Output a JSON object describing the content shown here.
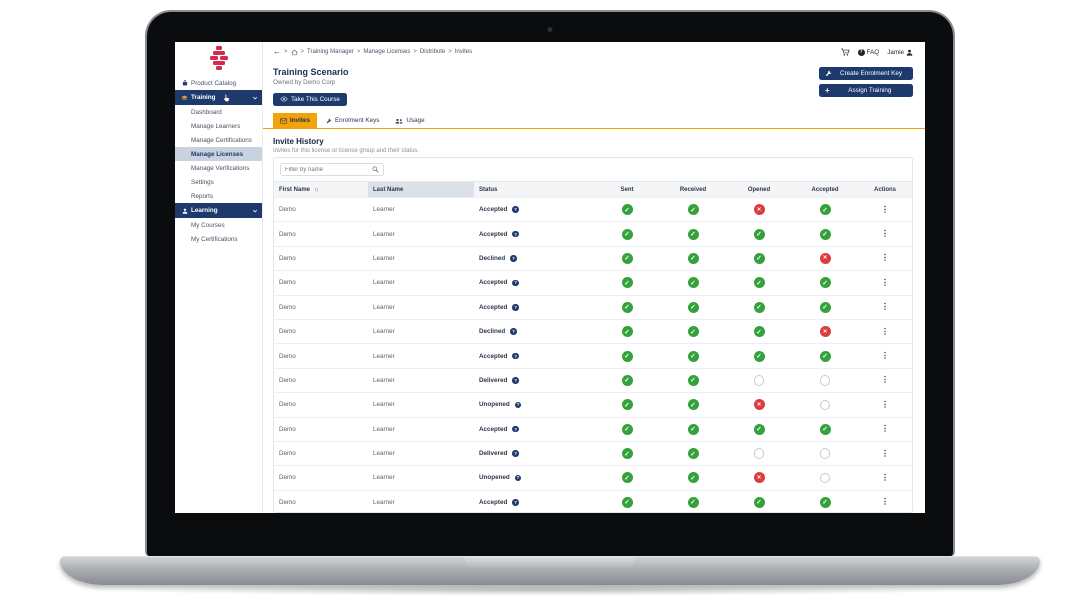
{
  "colors": {
    "navy": "#1e3a6d",
    "accent_orange": "#f0a30a",
    "success_green": "#33a13c",
    "danger_red": "#dd3b3b",
    "logo_red": "#d5294d",
    "selected_item_bg": "#c9d3df",
    "sorted_header_bg": "#dce1e7"
  },
  "sidebar": {
    "logo": "brand-logo",
    "items": [
      {
        "label": "Product Catalog",
        "type": "top",
        "icon": "bag"
      },
      {
        "label": "Training",
        "type": "section",
        "icon": "grad-cap",
        "chevron": true,
        "cursor": true
      },
      {
        "label": "Dashboard",
        "type": "sub"
      },
      {
        "label": "Manage Learners",
        "type": "sub"
      },
      {
        "label": "Manage Certifications",
        "type": "sub"
      },
      {
        "label": "Manage Licenses",
        "type": "sub",
        "selected": true
      },
      {
        "label": "Manage Verifications",
        "type": "sub"
      },
      {
        "label": "Settings",
        "type": "sub"
      },
      {
        "label": "Reports",
        "type": "sub"
      },
      {
        "label": "Learning",
        "type": "section",
        "icon": "person",
        "chevron": true
      },
      {
        "label": "My Courses",
        "type": "sub"
      },
      {
        "label": "My Certifications",
        "type": "sub"
      }
    ]
  },
  "topbar": {
    "breadcrumb": [
      "Training Manager",
      "Manage Licenses",
      "Distribute",
      "Invites"
    ],
    "icons": [
      "back-arrow-icon",
      "home-icon",
      "cart-icon",
      "faq-question-icon",
      "user-icon"
    ],
    "faq_label": "FAQ",
    "user_name": "Jamie"
  },
  "page": {
    "title": "Training Scenario",
    "subtitle": "Owned by Demo Corp",
    "take_course_label": "Take This Course",
    "create_key_label": "Create Enrolment Key",
    "assign_training_label": "Assign Training"
  },
  "tabs": [
    {
      "label": "Invites",
      "icon": "envelope",
      "active": true
    },
    {
      "label": "Enrolment Keys",
      "icon": "wrench",
      "active": false
    },
    {
      "label": "Usage",
      "icon": "people",
      "active": false
    }
  ],
  "invite_history": {
    "heading": "Invite History",
    "description": "Invites for this license or license group and their status.",
    "filter_placeholder": "Filter by name",
    "columns": [
      "First Name",
      "Last Name",
      "Status",
      "Sent",
      "Received",
      "Opened",
      "Accepted",
      "Actions"
    ],
    "rows": [
      {
        "first": "Demo",
        "last": "Learner",
        "status": "Accepted",
        "sent": "check",
        "received": "check",
        "opened": "cross",
        "accepted": "check"
      },
      {
        "first": "Demo",
        "last": "Learner",
        "status": "Accepted",
        "sent": "check",
        "received": "check",
        "opened": "check",
        "accepted": "check"
      },
      {
        "first": "Demo",
        "last": "Learner",
        "status": "Declined",
        "sent": "check",
        "received": "check",
        "opened": "check",
        "accepted": "cross"
      },
      {
        "first": "Demo",
        "last": "Learner",
        "status": "Accepted",
        "sent": "check",
        "received": "check",
        "opened": "check",
        "accepted": "check"
      },
      {
        "first": "Demo",
        "last": "Learner",
        "status": "Accepted",
        "sent": "check",
        "received": "check",
        "opened": "check",
        "accepted": "check"
      },
      {
        "first": "Demo",
        "last": "Learner",
        "status": "Declined",
        "sent": "check",
        "received": "check",
        "opened": "check",
        "accepted": "cross"
      },
      {
        "first": "Demo",
        "last": "Learner",
        "status": "Accepted",
        "sent": "check",
        "received": "check",
        "opened": "check",
        "accepted": "check"
      },
      {
        "first": "Demo",
        "last": "Learner",
        "status": "Delivered",
        "sent": "check",
        "received": "check",
        "opened": "empty",
        "accepted": "empty"
      },
      {
        "first": "Demo",
        "last": "Learner",
        "status": "Unopened",
        "sent": "check",
        "received": "check",
        "opened": "cross",
        "accepted": "empty"
      },
      {
        "first": "Demo",
        "last": "Learner",
        "status": "Accepted",
        "sent": "check",
        "received": "check",
        "opened": "check",
        "accepted": "check"
      },
      {
        "first": "Demo",
        "last": "Learner",
        "status": "Delivered",
        "sent": "check",
        "received": "check",
        "opened": "empty",
        "accepted": "empty"
      },
      {
        "first": "Demo",
        "last": "Learner",
        "status": "Unopened",
        "sent": "check",
        "received": "check",
        "opened": "cross",
        "accepted": "empty"
      },
      {
        "first": "Demo",
        "last": "Learner",
        "status": "Accepted",
        "sent": "check",
        "received": "check",
        "opened": "check",
        "accepted": "check"
      }
    ]
  }
}
